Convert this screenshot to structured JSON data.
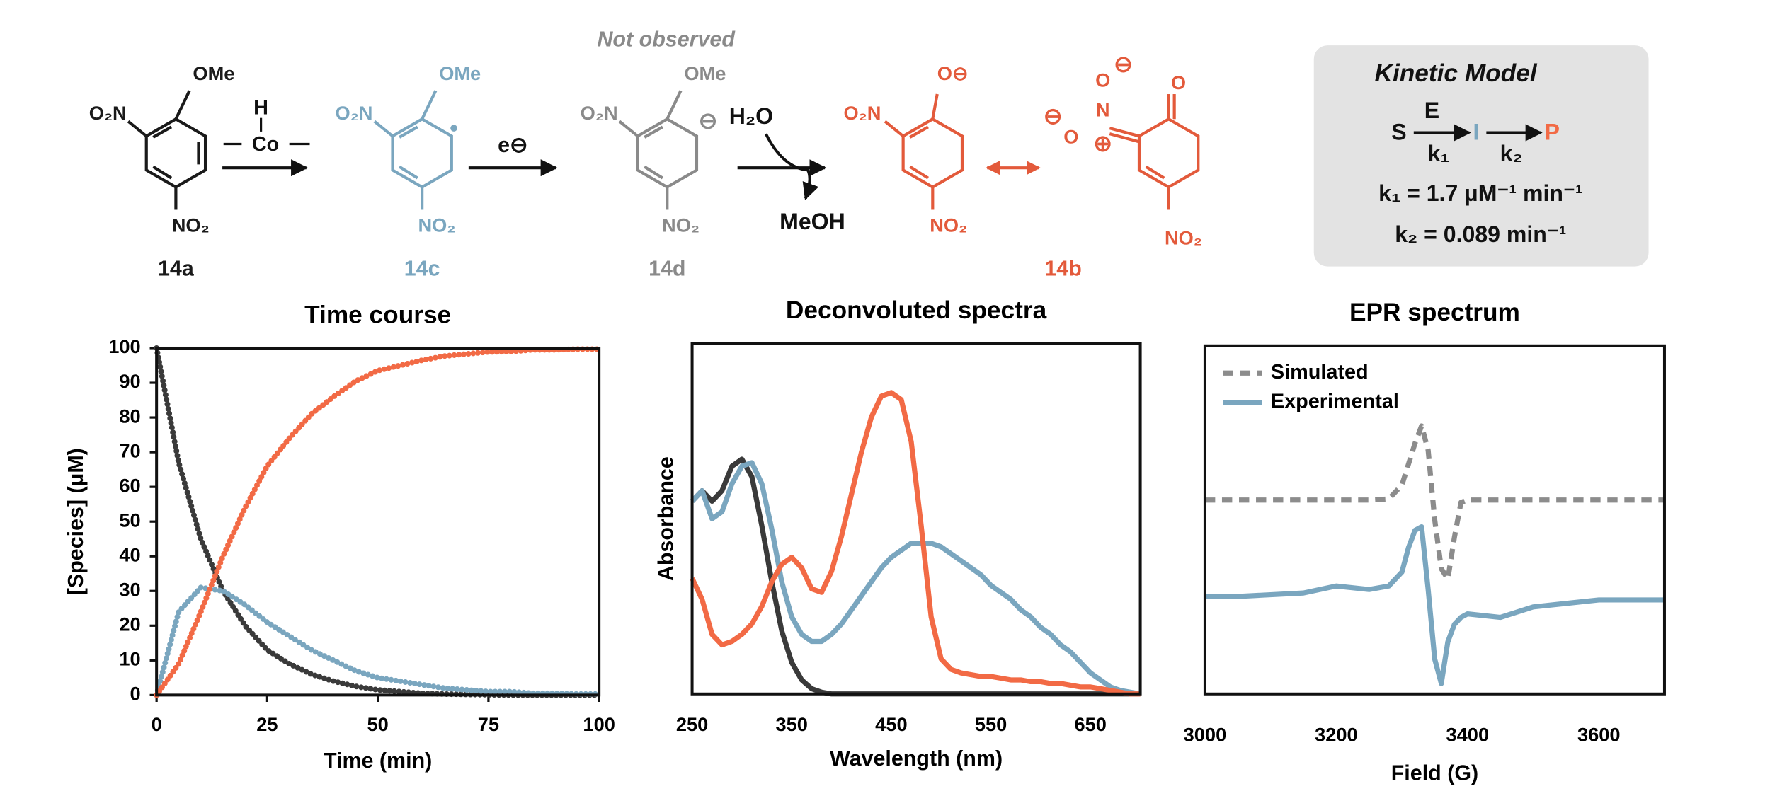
{
  "scheme": {
    "not_observed": "Not observed",
    "compound_14a": {
      "label": "14a",
      "top": "OMe",
      "left": "O₂N",
      "bottom": "NO₂"
    },
    "compound_14c": {
      "label": "14c",
      "top": "OMe",
      "left": "O₂N",
      "bottom": "NO₂"
    },
    "compound_14d": {
      "label": "14d",
      "top": "OMe",
      "left": "O₂N",
      "bottom": "NO₂",
      "charge": "⊖"
    },
    "compound_14b": {
      "label": "14b",
      "top": "O⊖",
      "left": "O₂N",
      "bottom": "NO₂"
    },
    "resonance": {
      "top": "O",
      "bottom": "NO₂",
      "nitrogen": "N",
      "oxygen_1": "O",
      "oxygen_2": "O",
      "plus": "⊕",
      "minus_1": "⊖",
      "minus_2": "⊖"
    },
    "reagent_1": {
      "top": "H",
      "middle": "Co"
    },
    "reagent_2": "e⊖",
    "reagent_3": {
      "top": "H₂O",
      "bottom": "MeOH"
    },
    "kinetic_model": {
      "title": "Kinetic Model",
      "s": "S",
      "e": "E",
      "k1": "k₁",
      "i": "I",
      "k2": "k₂",
      "p": "P",
      "rate_1": "k₁ = 1.7 μM⁻¹ min⁻¹",
      "rate_2": "k₂ = 0.089 min⁻¹"
    }
  },
  "chart_data": [
    {
      "type": "line",
      "title": "Time course",
      "x_label": "Time (min)",
      "y_label": "[Species] (μM)",
      "x": [
        0,
        5,
        10,
        15,
        20,
        25,
        30,
        35,
        40,
        45,
        50,
        55,
        60,
        65,
        70,
        75,
        80,
        85,
        90,
        95,
        100
      ],
      "series": [
        {
          "color": "#3a3a3a",
          "line_style": "dotted",
          "values": [
            100,
            67,
            45,
            30,
            20,
            13,
            9,
            6,
            4,
            2.5,
            1.5,
            1,
            0.5,
            0.3,
            0.2,
            0.1,
            0,
            0,
            0,
            0,
            0
          ]
        },
        {
          "color": "#7aa6bf",
          "line_style": "dotted",
          "values": [
            0,
            24,
            31,
            30,
            26,
            21,
            17,
            13,
            10,
            7,
            5,
            4,
            3,
            2,
            1.5,
            1,
            1,
            0.5,
            0.5,
            0.3,
            0.3
          ]
        },
        {
          "color": "#f26a45",
          "line_style": "dotted",
          "values": [
            0,
            9,
            24,
            40,
            54,
            66,
            74,
            81,
            86,
            90.5,
            93.5,
            95,
            96.5,
            97.7,
            98.3,
            98.9,
            99,
            99.5,
            99.5,
            99.7,
            99.7
          ]
        }
      ],
      "xlim": [
        0,
        100
      ],
      "xticks": [
        0,
        25,
        50,
        75,
        100
      ],
      "ylim": [
        0,
        100
      ],
      "yticks": [
        0,
        10,
        20,
        30,
        40,
        50,
        60,
        70,
        80,
        90,
        100
      ]
    },
    {
      "type": "line",
      "title": "Deconvoluted spectra",
      "x_label": "Wavelength (nm)",
      "y_label": "Absorbance",
      "x": [
        250,
        260,
        270,
        280,
        290,
        300,
        310,
        320,
        330,
        340,
        350,
        360,
        370,
        380,
        390,
        400,
        410,
        420,
        430,
        440,
        450,
        460,
        470,
        480,
        490,
        500,
        510,
        520,
        530,
        540,
        550,
        560,
        570,
        580,
        590,
        600,
        610,
        620,
        630,
        640,
        650,
        660,
        670,
        680,
        690,
        700
      ],
      "series": [
        {
          "color": "#3a3a3a",
          "line_style": "solid",
          "values": [
            0.55,
            0.58,
            0.55,
            0.58,
            0.65,
            0.67,
            0.62,
            0.48,
            0.32,
            0.18,
            0.09,
            0.04,
            0.015,
            0.005,
            0,
            0,
            0,
            0,
            0,
            0,
            0,
            0,
            0,
            0,
            0,
            0,
            0,
            0,
            0,
            0,
            0,
            0,
            0,
            0,
            0,
            0,
            0,
            0,
            0,
            0,
            0,
            0,
            0,
            0,
            0,
            0
          ]
        },
        {
          "color": "#7aa6bf",
          "line_style": "solid",
          "values": [
            0.55,
            0.58,
            0.5,
            0.52,
            0.6,
            0.65,
            0.66,
            0.6,
            0.47,
            0.32,
            0.22,
            0.17,
            0.15,
            0.15,
            0.17,
            0.2,
            0.24,
            0.28,
            0.32,
            0.36,
            0.39,
            0.41,
            0.43,
            0.43,
            0.43,
            0.42,
            0.4,
            0.38,
            0.36,
            0.34,
            0.31,
            0.29,
            0.27,
            0.24,
            0.22,
            0.19,
            0.17,
            0.14,
            0.12,
            0.09,
            0.06,
            0.04,
            0.02,
            0.01,
            0.005,
            0
          ]
        },
        {
          "color": "#f26a45",
          "line_style": "solid",
          "values": [
            0.33,
            0.27,
            0.17,
            0.14,
            0.15,
            0.17,
            0.2,
            0.25,
            0.32,
            0.37,
            0.39,
            0.36,
            0.3,
            0.29,
            0.35,
            0.45,
            0.57,
            0.69,
            0.79,
            0.85,
            0.86,
            0.84,
            0.72,
            0.48,
            0.22,
            0.1,
            0.07,
            0.06,
            0.055,
            0.05,
            0.05,
            0.045,
            0.04,
            0.04,
            0.035,
            0.035,
            0.03,
            0.03,
            0.025,
            0.02,
            0.02,
            0.015,
            0.01,
            0.005,
            0,
            0
          ]
        }
      ],
      "xlim": [
        250,
        700
      ],
      "xticks": [
        250,
        350,
        450,
        550,
        650
      ],
      "ylim": [
        0,
        1
      ]
    },
    {
      "type": "line",
      "title": "EPR spectrum",
      "x_label": "Field (G)",
      "legend": "top-left",
      "x": [
        3000,
        3050,
        3100,
        3150,
        3200,
        3250,
        3280,
        3300,
        3310,
        3320,
        3330,
        3340,
        3350,
        3360,
        3370,
        3380,
        3390,
        3400,
        3450,
        3500,
        3550,
        3600,
        3650,
        3700
      ],
      "series": [
        {
          "name": "Simulated",
          "color": "#8c8c8c",
          "line_style": "dashed",
          "values": [
            0.557,
            0.557,
            0.557,
            0.557,
            0.557,
            0.557,
            0.56,
            0.6,
            0.66,
            0.72,
            0.77,
            0.7,
            0.5,
            0.36,
            0.33,
            0.45,
            0.55,
            0.557,
            0.557,
            0.557,
            0.557,
            0.557,
            0.557,
            0.557
          ]
        },
        {
          "name": "Experimental",
          "color": "#7aa6bf",
          "line_style": "solid",
          "values": [
            0.28,
            0.28,
            0.285,
            0.29,
            0.31,
            0.3,
            0.31,
            0.35,
            0.42,
            0.47,
            0.48,
            0.3,
            0.1,
            0.03,
            0.15,
            0.2,
            0.22,
            0.23,
            0.22,
            0.25,
            0.26,
            0.27,
            0.27,
            0.27
          ]
        }
      ],
      "xlim": [
        3000,
        3700
      ],
      "xticks": [
        3000,
        3200,
        3400,
        3600
      ],
      "ylim": [
        0,
        1
      ]
    }
  ]
}
